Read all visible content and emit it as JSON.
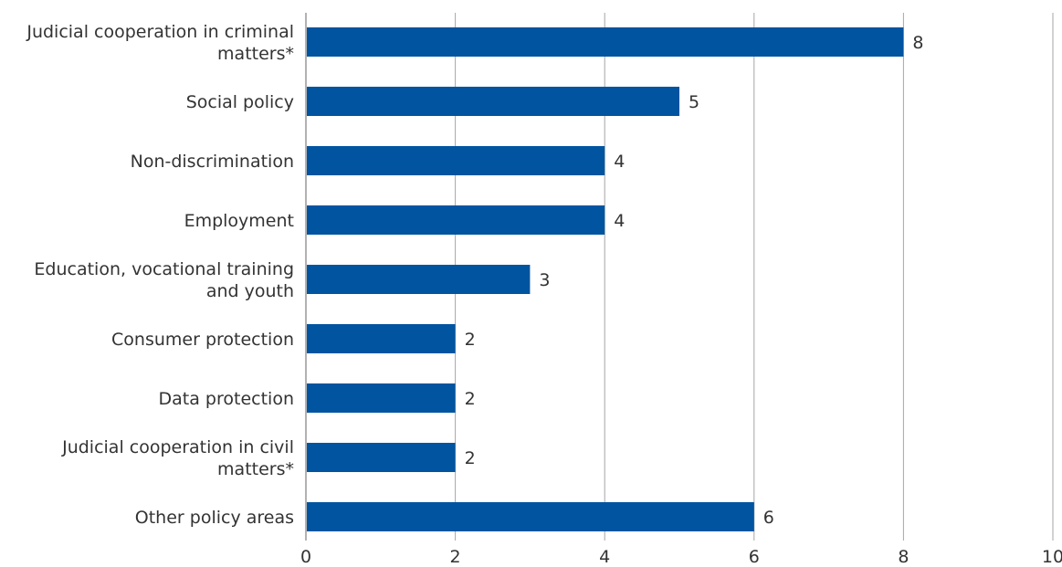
{
  "chart_data": {
    "type": "bar",
    "orientation": "horizontal",
    "categories": [
      [
        "Judicial cooperation in criminal",
        "matters*"
      ],
      [
        "Social policy"
      ],
      [
        "Non-discrimination"
      ],
      [
        "Employment"
      ],
      [
        "Education, vocational training",
        "and youth"
      ],
      [
        "Consumer protection"
      ],
      [
        "Data protection"
      ],
      [
        "Judicial cooperation in civil",
        "matters*"
      ],
      [
        "Other policy areas"
      ]
    ],
    "values": [
      8,
      5,
      4,
      4,
      3,
      2,
      2,
      2,
      6
    ],
    "xlim": [
      0,
      10
    ],
    "xticks": [
      0,
      2,
      4,
      6,
      8,
      10
    ],
    "grid": "vertical",
    "bar_color": "#0054a0",
    "title": "",
    "xlabel": "",
    "ylabel": ""
  }
}
